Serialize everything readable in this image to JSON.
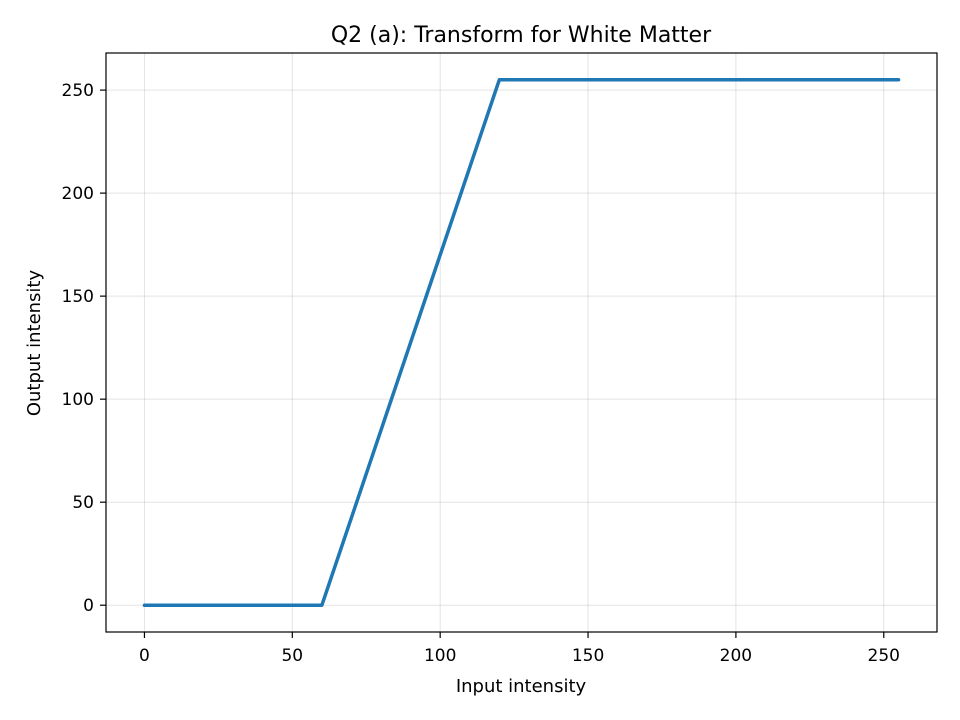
{
  "chart_data": {
    "type": "line",
    "title": "Q2 (a): Transform for White Matter",
    "xlabel": "Input intensity",
    "ylabel": "Output intensity",
    "xlim": [
      -13,
      268
    ],
    "ylim": [
      -13,
      268
    ],
    "xticks": [
      0,
      50,
      100,
      150,
      200,
      250
    ],
    "yticks": [
      0,
      50,
      100,
      150,
      200,
      250
    ],
    "grid": true,
    "series": [
      {
        "color": "#1f77b4",
        "x": [
          0,
          60,
          120,
          255
        ],
        "y": [
          0,
          0,
          255,
          255
        ]
      }
    ]
  }
}
